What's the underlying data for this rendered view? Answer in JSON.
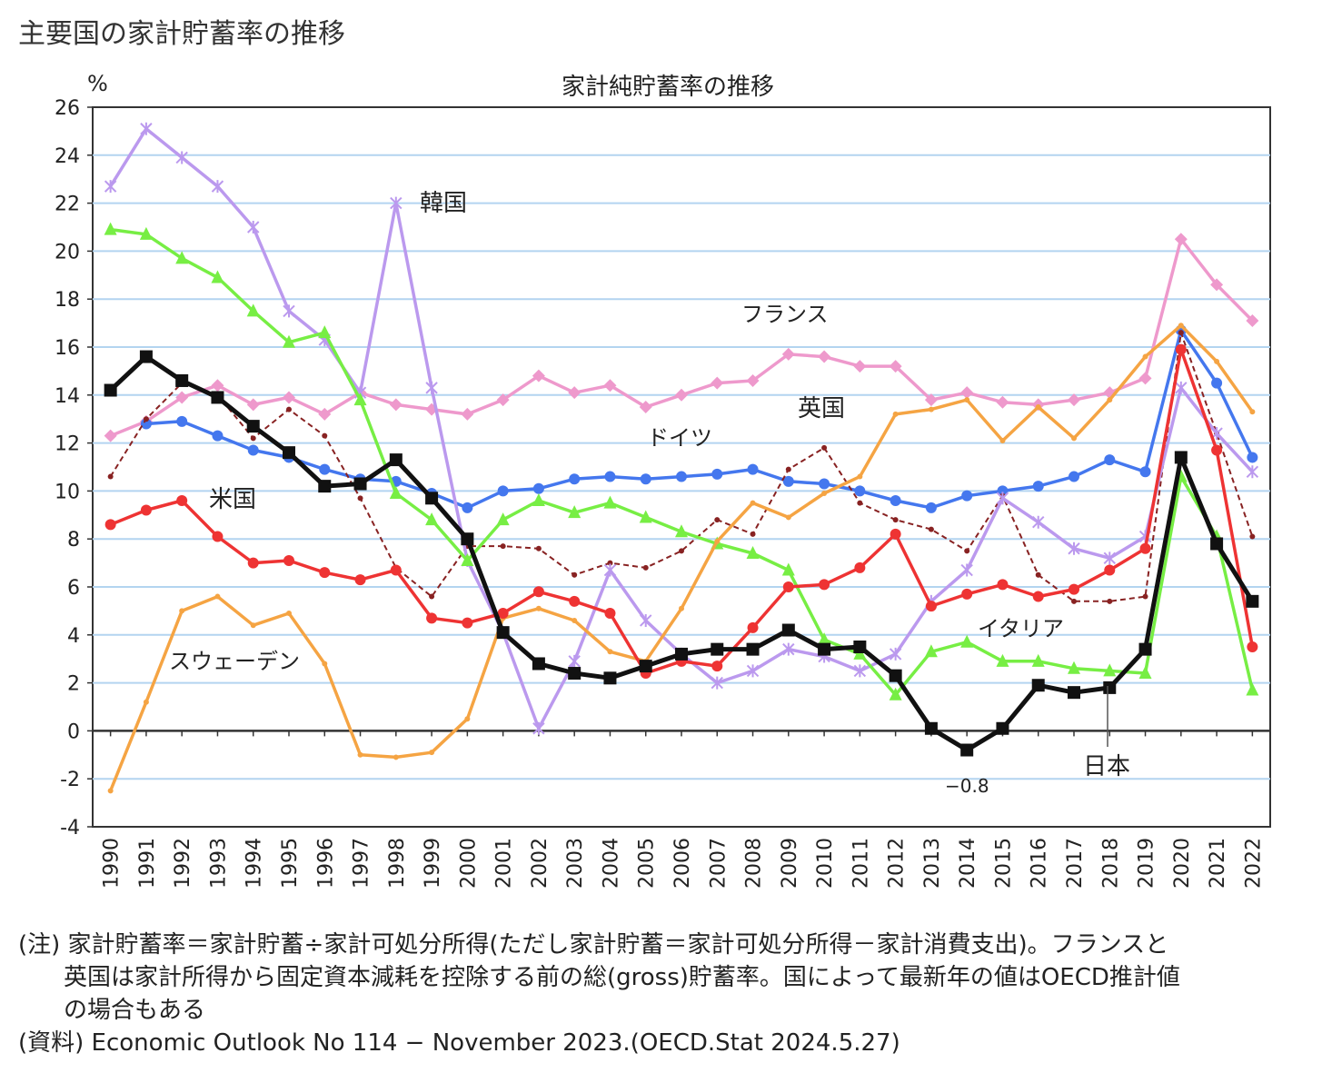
{
  "page": {
    "title": "主要国の家計貯蓄率の推移"
  },
  "chart_data": {
    "type": "line",
    "title": "家計純貯蓄率の推移",
    "ylabel": "%",
    "xlabel": "",
    "ylim": [
      -4,
      26
    ],
    "yticks": [
      -4,
      -2,
      0,
      2,
      4,
      6,
      8,
      10,
      12,
      14,
      16,
      18,
      20,
      22,
      24,
      26
    ],
    "grid": true,
    "categories": [
      "1990",
      "1991",
      "1992",
      "1993",
      "1994",
      "1995",
      "1996",
      "1997",
      "1998",
      "1999",
      "2000",
      "2001",
      "2002",
      "2003",
      "2004",
      "2005",
      "2006",
      "2007",
      "2008",
      "2009",
      "2010",
      "2011",
      "2012",
      "2013",
      "2014",
      "2015",
      "2016",
      "2017",
      "2018",
      "2019",
      "2020",
      "2021",
      "2022"
    ],
    "series": [
      {
        "name": "フランス",
        "color": "#ee99cc",
        "marker": "diamond",
        "values": [
          12.3,
          12.9,
          13.9,
          14.4,
          13.6,
          13.9,
          13.2,
          14.1,
          13.6,
          13.4,
          13.2,
          13.8,
          14.8,
          14.1,
          14.4,
          13.5,
          14.0,
          14.5,
          14.6,
          15.7,
          15.6,
          15.2,
          15.2,
          13.8,
          14.1,
          13.7,
          13.6,
          13.8,
          14.1,
          14.7,
          20.5,
          18.6,
          17.1
        ]
      },
      {
        "name": "ドイツ",
        "color": "#4477ee",
        "marker": "circle",
        "values": [
          null,
          12.8,
          12.9,
          12.3,
          11.7,
          11.4,
          10.9,
          10.5,
          10.4,
          9.9,
          9.3,
          10.0,
          10.1,
          10.5,
          10.6,
          10.5,
          10.6,
          10.7,
          10.9,
          10.4,
          10.3,
          10.0,
          9.6,
          9.3,
          9.8,
          10.0,
          10.2,
          10.6,
          11.3,
          10.8,
          16.7,
          14.5,
          11.4
        ]
      },
      {
        "name": "英国",
        "color": "#882222",
        "marker": "small",
        "dashed": true,
        "values": [
          10.6,
          13.0,
          14.5,
          14.0,
          12.2,
          13.4,
          12.3,
          9.7,
          6.8,
          5.6,
          7.7,
          7.7,
          7.6,
          6.5,
          7.0,
          6.8,
          7.5,
          8.8,
          8.2,
          10.9,
          11.8,
          9.5,
          8.8,
          8.4,
          7.5,
          9.8,
          6.5,
          5.4,
          5.4,
          5.6,
          16.6,
          12.4,
          8.1
        ]
      },
      {
        "name": "韓国",
        "color": "#bb99ee",
        "marker": "star",
        "values": [
          22.7,
          25.1,
          23.9,
          22.7,
          21.0,
          17.5,
          16.3,
          14.1,
          22.0,
          14.3,
          7.1,
          4.1,
          0.1,
          2.9,
          6.7,
          4.6,
          3.2,
          2.0,
          2.5,
          3.4,
          3.1,
          2.5,
          3.2,
          5.4,
          6.7,
          9.7,
          8.7,
          7.6,
          7.2,
          8.1,
          14.3,
          12.4,
          10.8
        ]
      },
      {
        "name": "イタリア",
        "color": "#77ee44",
        "marker": "triangle",
        "values": [
          20.9,
          20.7,
          19.7,
          18.9,
          17.5,
          16.2,
          16.6,
          13.8,
          9.9,
          8.8,
          7.1,
          8.8,
          9.6,
          9.1,
          9.5,
          8.9,
          8.3,
          7.8,
          7.4,
          6.7,
          3.8,
          3.2,
          1.5,
          3.3,
          3.7,
          2.9,
          2.9,
          2.6,
          2.5,
          2.4,
          10.6,
          8.1,
          1.7
        ]
      },
      {
        "name": "スウェーデン",
        "color": "#f5a443",
        "marker": "small",
        "values": [
          -2.5,
          1.2,
          5.0,
          5.6,
          4.4,
          4.9,
          2.8,
          -1.0,
          -1.1,
          -0.9,
          0.5,
          4.7,
          5.1,
          4.6,
          3.3,
          2.9,
          5.1,
          7.9,
          9.5,
          8.9,
          9.9,
          10.6,
          13.2,
          13.4,
          13.8,
          12.1,
          13.5,
          12.2,
          13.8,
          15.6,
          16.9,
          15.4,
          13.3
        ]
      },
      {
        "name": "米国",
        "color": "#ee3333",
        "marker": "circle",
        "values": [
          8.6,
          9.2,
          9.6,
          8.1,
          7.0,
          7.1,
          6.6,
          6.3,
          6.7,
          4.7,
          4.5,
          4.9,
          5.8,
          5.4,
          4.9,
          2.4,
          2.9,
          2.7,
          4.3,
          6.0,
          6.1,
          6.8,
          8.2,
          5.2,
          5.7,
          6.1,
          5.6,
          5.9,
          6.7,
          7.6,
          15.9,
          11.7,
          3.5
        ]
      },
      {
        "name": "日本",
        "color": "#111111",
        "marker": "square",
        "values": [
          14.2,
          15.6,
          14.6,
          13.9,
          12.7,
          11.6,
          10.2,
          10.3,
          11.3,
          9.7,
          8.0,
          4.1,
          2.8,
          2.4,
          2.2,
          2.7,
          3.2,
          3.4,
          3.4,
          4.2,
          3.4,
          3.5,
          2.3,
          0.1,
          -0.8,
          0.1,
          1.9,
          1.6,
          1.8,
          3.4,
          11.4,
          7.8,
          5.4
        ]
      }
    ],
    "labels": {
      "korea": "韓国",
      "france": "フランス",
      "uk": "英国",
      "germany": "ドイツ",
      "us": "米国",
      "sweden": "スウェーデン",
      "italy": "イタリア",
      "japan": "日本",
      "japan_min": "−0.8"
    }
  },
  "notes": {
    "line1": "(注) 家計貯蓄率＝家計貯蓄÷家計可処分所得(ただし家計貯蓄＝家計可処分所得－家計消費支出)。フランスと",
    "line2": "英国は家計所得から固定資本減耗を控除する前の総(gross)貯蓄率。国によって最新年の値はOECD推計値",
    "line3": "の場合もある",
    "line4": "(資料) Economic Outlook No 114 − November 2023.(OECD.Stat 2024.5.27)"
  }
}
